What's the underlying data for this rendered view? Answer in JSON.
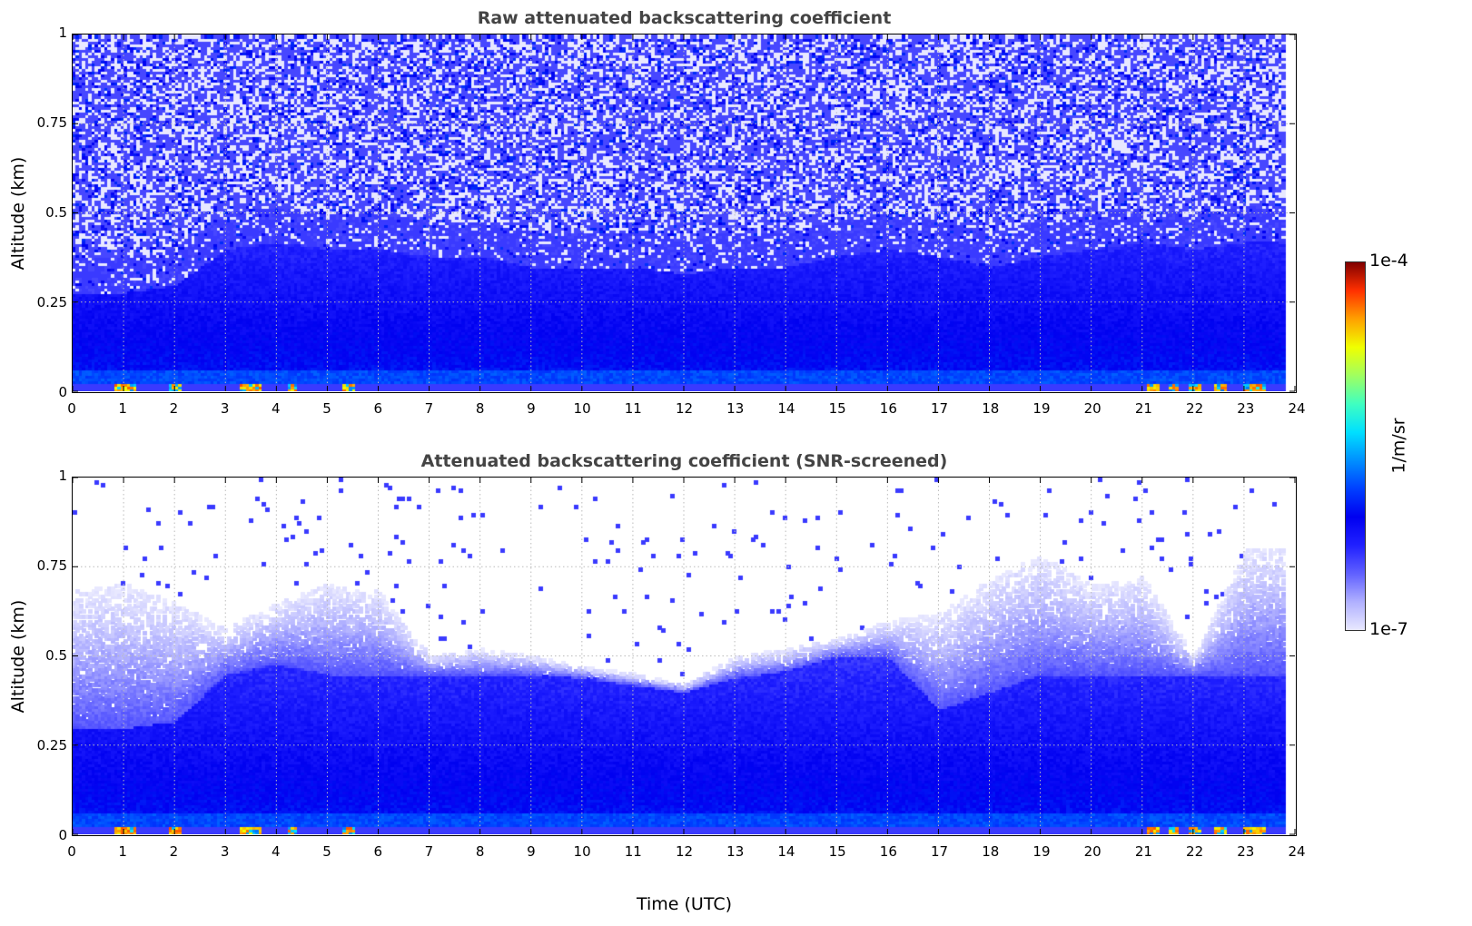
{
  "chart_data": [
    {
      "type": "heatmap",
      "title": "Raw attenuated backscattering coefficient",
      "ylabel": "Altitude (km)",
      "xlabel": "",
      "xlim": [
        0,
        24
      ],
      "ylim": [
        0,
        1
      ],
      "x_ticks": [
        "0",
        "1",
        "2",
        "3",
        "4",
        "5",
        "6",
        "7",
        "8",
        "9",
        "10",
        "11",
        "12",
        "13",
        "14",
        "15",
        "16",
        "17",
        "18",
        "19",
        "20",
        "21",
        "22",
        "23",
        "24"
      ],
      "y_ticks": [
        "0",
        "0.25",
        "0.5",
        "0.75",
        "1"
      ],
      "grid": true,
      "data_end_hour": 23.8,
      "boundary_layer_top_km": [
        0.28,
        0.28,
        0.3,
        0.4,
        0.42,
        0.4,
        0.4,
        0.38,
        0.38,
        0.35,
        0.35,
        0.35,
        0.33,
        0.35,
        0.35,
        0.38,
        0.4,
        0.38,
        0.35,
        0.38,
        0.4,
        0.42,
        0.4,
        0.42,
        0.42
      ],
      "surface_hotspot_hours": [
        0.9,
        1.1,
        2.0,
        3.4,
        3.6,
        4.3,
        5.4,
        21.2,
        21.6,
        22.0,
        22.5,
        23.1,
        23.3
      ]
    },
    {
      "type": "heatmap",
      "title": "Attenuated backscattering coefficient (SNR-screened)",
      "ylabel": "Altitude (km)",
      "xlabel": "Time (UTC)",
      "xlim": [
        0,
        24
      ],
      "ylim": [
        0,
        1
      ],
      "x_ticks": [
        "0",
        "1",
        "2",
        "3",
        "4",
        "5",
        "6",
        "7",
        "8",
        "9",
        "10",
        "11",
        "12",
        "13",
        "14",
        "15",
        "16",
        "17",
        "18",
        "19",
        "20",
        "21",
        "22",
        "23",
        "24"
      ],
      "y_ticks": [
        "0",
        "0.25",
        "0.5",
        "0.75",
        "1"
      ],
      "grid": true,
      "data_end_hour": 23.8,
      "signal_top_km": [
        0.68,
        0.7,
        0.65,
        0.58,
        0.65,
        0.7,
        0.68,
        0.5,
        0.52,
        0.5,
        0.47,
        0.45,
        0.42,
        0.5,
        0.52,
        0.55,
        0.6,
        0.62,
        0.72,
        0.78,
        0.7,
        0.72,
        0.5,
        0.8,
        0.8
      ],
      "dense_layer_top_km": [
        0.3,
        0.3,
        0.32,
        0.45,
        0.48,
        0.45,
        0.45,
        0.45,
        0.45,
        0.45,
        0.44,
        0.42,
        0.4,
        0.44,
        0.46,
        0.5,
        0.5,
        0.35,
        0.4,
        0.45,
        0.45,
        0.45,
        0.45,
        0.45,
        0.45
      ]
    }
  ],
  "colorbar": {
    "label": "1/m/sr",
    "min_label": "1e-7",
    "max_label": "1e-4",
    "min": 1e-07,
    "max": 0.0001,
    "scale": "log",
    "colors": [
      "#e8e8ff",
      "#b0b0ff",
      "#6060ff",
      "#2020ff",
      "#0000f0",
      "#0040ff",
      "#0090ff",
      "#00e0ff",
      "#40ffc0",
      "#a0ff60",
      "#f0ff00",
      "#ffa000",
      "#ff3000",
      "#800000"
    ]
  }
}
